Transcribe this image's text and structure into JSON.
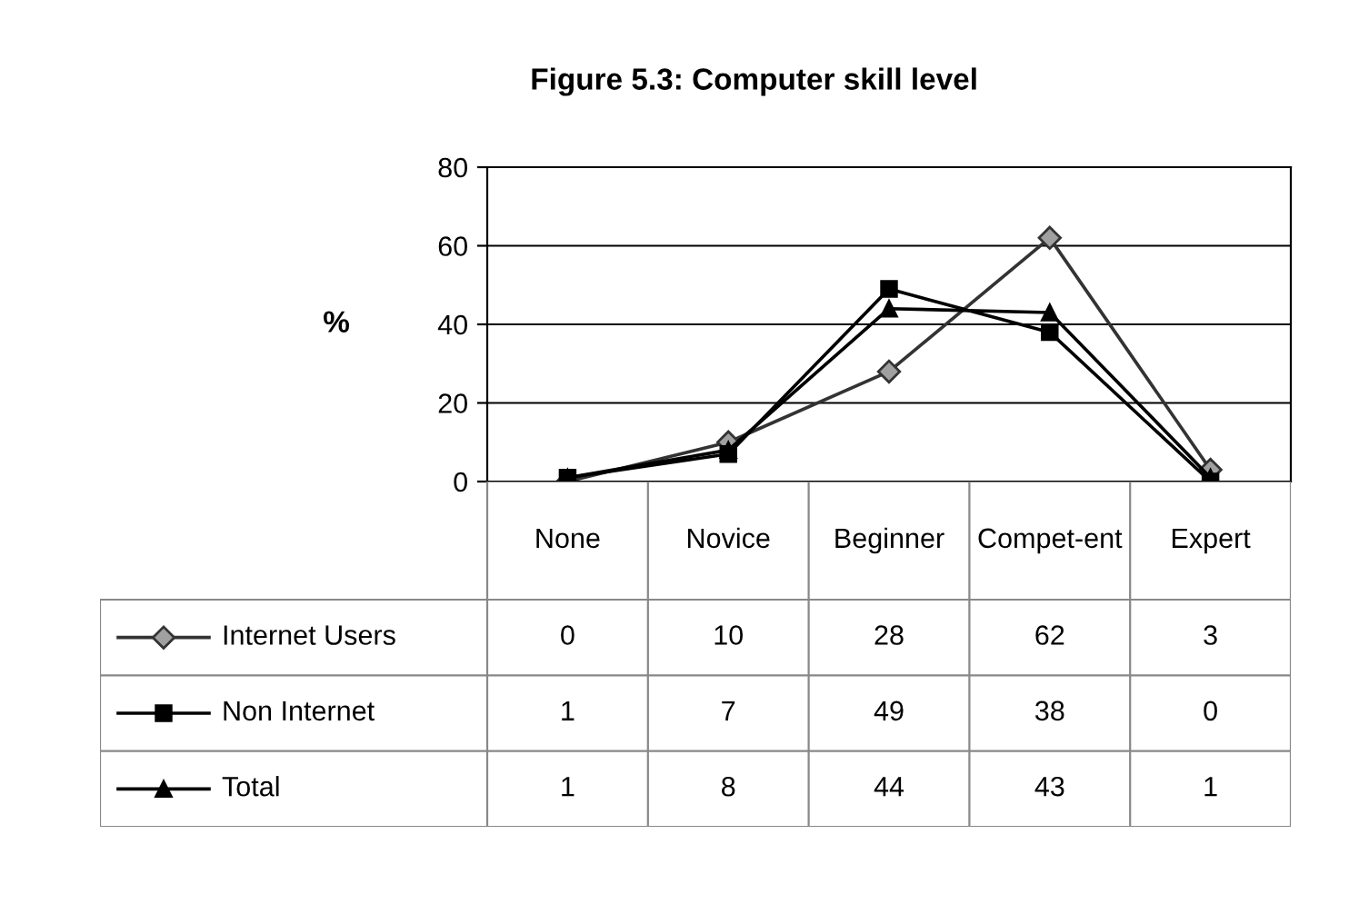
{
  "chart_data": {
    "type": "line",
    "title": "Figure 5.3: Computer skill level",
    "ylabel": "%",
    "categories": [
      "None",
      "Novice",
      "Beginner",
      "Compet-ent",
      "Expert"
    ],
    "series": [
      {
        "name": "Internet Users",
        "color": "#333333",
        "marker": "diamond",
        "values": [
          0,
          10,
          28,
          62,
          3
        ]
      },
      {
        "name": "Non Internet",
        "color": "#000000",
        "marker": "square",
        "values": [
          1,
          7,
          49,
          38,
          0
        ]
      },
      {
        "name": "Total",
        "color": "#000000",
        "marker": "triangle",
        "values": [
          1,
          8,
          44,
          43,
          1
        ]
      }
    ],
    "ylim": [
      0,
      80
    ],
    "yticks": [
      0,
      20,
      40,
      60,
      80
    ],
    "grid": "y",
    "legend": "bottom",
    "data_labels": true,
    "line_style": "solid"
  }
}
